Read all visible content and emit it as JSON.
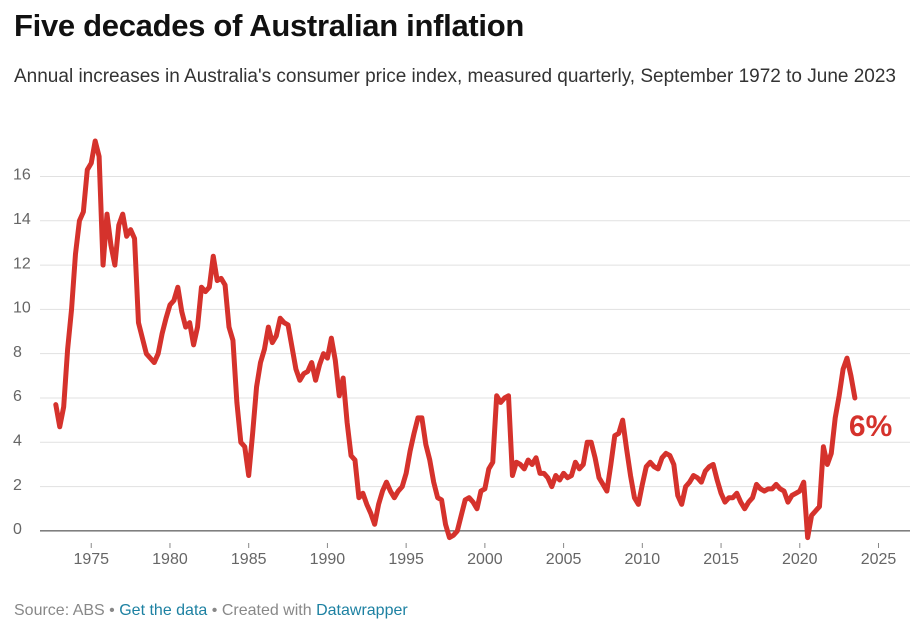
{
  "chart_data": {
    "type": "line",
    "title": "Five decades of Australian inflation",
    "subtitle": "Annual increases in Australia's consumer price index, measured quarterly, September 1972 to June 2023",
    "annotation": "6%",
    "source": "Source: ABS",
    "separator": "•",
    "data_link": "Get the data",
    "credit": "Created with",
    "credit_link": "Datawrapper",
    "color": "#d5322c",
    "grid": true,
    "xlim": [
      1972,
      2027
    ],
    "xticks": [
      1975,
      1980,
      1985,
      1990,
      1995,
      2000,
      2005,
      2010,
      2015,
      2020,
      2025
    ],
    "ylim": [
      -0.5,
      17.6
    ],
    "yticks": [
      0,
      2,
      4,
      6,
      8,
      10,
      12,
      14,
      16
    ],
    "x": [
      1972.75,
      1973,
      1973.25,
      1973.5,
      1973.75,
      1974,
      1974.25,
      1974.5,
      1974.75,
      1975,
      1975.25,
      1975.5,
      1975.75,
      1976,
      1976.25,
      1976.5,
      1976.75,
      1977,
      1977.25,
      1977.5,
      1977.75,
      1978,
      1978.25,
      1978.5,
      1978.75,
      1979,
      1979.25,
      1979.5,
      1979.75,
      1980,
      1980.25,
      1980.5,
      1980.75,
      1981,
      1981.25,
      1981.5,
      1981.75,
      1982,
      1982.25,
      1982.5,
      1982.75,
      1983,
      1983.25,
      1983.5,
      1983.75,
      1984,
      1984.25,
      1984.5,
      1984.75,
      1985,
      1985.25,
      1985.5,
      1985.75,
      1986,
      1986.25,
      1986.5,
      1986.75,
      1987,
      1987.25,
      1987.5,
      1987.75,
      1988,
      1988.25,
      1988.5,
      1988.75,
      1989,
      1989.25,
      1989.5,
      1989.75,
      1990,
      1990.25,
      1990.5,
      1990.75,
      1991,
      1991.25,
      1991.5,
      1991.75,
      1992,
      1992.25,
      1992.5,
      1992.75,
      1993,
      1993.25,
      1993.5,
      1993.75,
      1994,
      1994.25,
      1994.5,
      1994.75,
      1995,
      1995.25,
      1995.5,
      1995.75,
      1996,
      1996.25,
      1996.5,
      1996.75,
      1997,
      1997.25,
      1997.5,
      1997.75,
      1998,
      1998.25,
      1998.5,
      1998.75,
      1999,
      1999.25,
      1999.5,
      1999.75,
      2000,
      2000.25,
      2000.5,
      2000.75,
      2001,
      2001.25,
      2001.5,
      2001.75,
      2002,
      2002.25,
      2002.5,
      2002.75,
      2003,
      2003.25,
      2003.5,
      2003.75,
      2004,
      2004.25,
      2004.5,
      2004.75,
      2005,
      2005.25,
      2005.5,
      2005.75,
      2006,
      2006.25,
      2006.5,
      2006.75,
      2007,
      2007.25,
      2007.5,
      2007.75,
      2008,
      2008.25,
      2008.5,
      2008.75,
      2009,
      2009.25,
      2009.5,
      2009.75,
      2010,
      2010.25,
      2010.5,
      2010.75,
      2011,
      2011.25,
      2011.5,
      2011.75,
      2012,
      2012.25,
      2012.5,
      2012.75,
      2013,
      2013.25,
      2013.5,
      2013.75,
      2014,
      2014.25,
      2014.5,
      2014.75,
      2015,
      2015.25,
      2015.5,
      2015.75,
      2016,
      2016.25,
      2016.5,
      2016.75,
      2017,
      2017.25,
      2017.5,
      2017.75,
      2018,
      2018.25,
      2018.5,
      2018.75,
      2019,
      2019.25,
      2019.5,
      2019.75,
      2020,
      2020.25,
      2020.5,
      2020.75,
      2021,
      2021.25,
      2021.5,
      2021.75,
      2022,
      2022.25,
      2022.5,
      2022.75,
      2023,
      2023.25,
      2023.5
    ],
    "values": [
      5.7,
      4.7,
      5.6,
      8.2,
      10.0,
      12.5,
      14.0,
      14.4,
      16.3,
      16.6,
      17.6,
      16.9,
      12.0,
      14.3,
      12.9,
      12.0,
      13.8,
      14.3,
      13.3,
      13.6,
      13.2,
      9.4,
      8.7,
      8.0,
      7.8,
      7.6,
      8.0,
      8.9,
      9.6,
      10.2,
      10.4,
      11.0,
      9.9,
      9.2,
      9.4,
      8.4,
      9.2,
      11.0,
      10.8,
      11.0,
      12.4,
      11.3,
      11.4,
      11.1,
      9.2,
      8.6,
      5.8,
      4.0,
      3.8,
      2.5,
      4.4,
      6.5,
      7.6,
      8.2,
      9.2,
      8.5,
      8.8,
      9.6,
      9.4,
      9.3,
      8.3,
      7.3,
      6.8,
      7.1,
      7.2,
      7.6,
      6.8,
      7.5,
      8.0,
      7.8,
      8.7,
      7.7,
      6.1,
      6.9,
      4.9,
      3.4,
      3.2,
      1.5,
      1.7,
      1.2,
      0.8,
      0.3,
      1.2,
      1.8,
      2.2,
      1.8,
      1.5,
      1.8,
      2.0,
      2.6,
      3.6,
      4.4,
      5.1,
      5.1,
      3.9,
      3.2,
      2.2,
      1.5,
      1.4,
      0.3,
      -0.3,
      -0.2,
      0.0,
      0.7,
      1.4,
      1.5,
      1.3,
      1.0,
      1.8,
      1.9,
      2.8,
      3.1,
      6.1,
      5.8,
      6.0,
      6.1,
      2.5,
      3.1,
      3.0,
      2.8,
      3.2,
      3.0,
      3.3,
      2.6,
      2.6,
      2.4,
      2.0,
      2.5,
      2.3,
      2.6,
      2.4,
      2.5,
      3.1,
      2.8,
      3.0,
      4.0,
      4.0,
      3.3,
      2.4,
      2.1,
      1.8,
      3.0,
      4.3,
      4.4,
      5.0,
      3.7,
      2.5,
      1.5,
      1.2,
      2.1,
      2.9,
      3.1,
      2.9,
      2.8,
      3.3,
      3.5,
      3.4,
      3.0,
      1.6,
      1.2,
      2.0,
      2.2,
      2.5,
      2.4,
      2.2,
      2.7,
      2.9,
      3.0,
      2.3,
      1.7,
      1.3,
      1.5,
      1.5,
      1.7,
      1.3,
      1.0,
      1.3,
      1.5,
      2.1,
      1.9,
      1.8,
      1.9,
      1.9,
      2.1,
      1.9,
      1.8,
      1.3,
      1.6,
      1.7,
      1.8,
      2.2,
      -0.3,
      0.7,
      0.9,
      1.1,
      3.8,
      3.0,
      3.5,
      5.1,
      6.1,
      7.3,
      7.8,
      7.0,
      6.0
    ]
  }
}
